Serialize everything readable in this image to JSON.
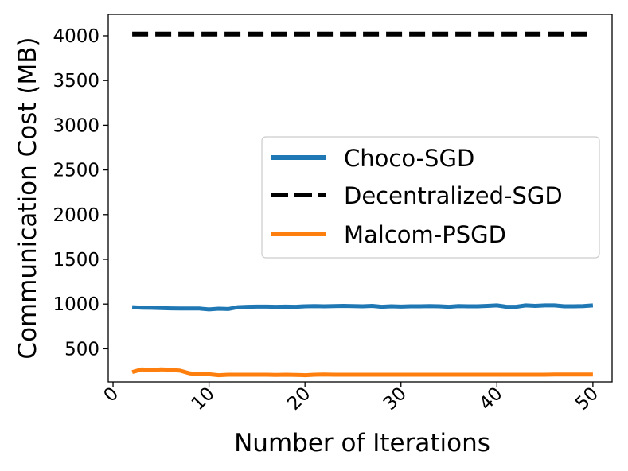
{
  "chart_data": {
    "type": "line",
    "title": "",
    "xlabel": "Number of Iterations",
    "ylabel": "Communication Cost (MB)",
    "xlim": [
      -0.5,
      52
    ],
    "ylim": [
      130,
      4240
    ],
    "xticks": [
      0,
      10,
      20,
      30,
      40,
      50
    ],
    "xtick_labels": [
      "0",
      "10",
      "20",
      "30",
      "40",
      "50"
    ],
    "yticks": [
      500,
      1000,
      1500,
      2000,
      2500,
      3000,
      3500,
      4000
    ],
    "ytick_labels": [
      "500",
      "1000",
      "1500",
      "2000",
      "2500",
      "3000",
      "3500",
      "4000"
    ],
    "grid": false,
    "legend_position": "center-right",
    "x": [
      2,
      3,
      4,
      5,
      6,
      7,
      8,
      9,
      10,
      11,
      12,
      13,
      14,
      15,
      16,
      17,
      18,
      19,
      20,
      21,
      22,
      23,
      24,
      25,
      26,
      27,
      28,
      29,
      30,
      31,
      32,
      33,
      34,
      35,
      36,
      37,
      38,
      39,
      40,
      41,
      42,
      43,
      44,
      45,
      46,
      47,
      48,
      49,
      50
    ],
    "series": [
      {
        "name": "Choco-SGD",
        "color": "#1f77b4",
        "style": "solid",
        "values": [
          965,
          960,
          958,
          955,
          952,
          950,
          950,
          950,
          940,
          948,
          945,
          965,
          970,
          972,
          972,
          970,
          972,
          970,
          975,
          978,
          975,
          977,
          980,
          978,
          975,
          980,
          970,
          975,
          972,
          975,
          975,
          978,
          975,
          970,
          978,
          975,
          975,
          980,
          985,
          970,
          970,
          985,
          980,
          985,
          985,
          975,
          975,
          978,
          985
        ]
      },
      {
        "name": "Decentralized-SGD",
        "color": "#000000",
        "style": "dashed",
        "values": [
          4020,
          4020,
          4020,
          4020,
          4020,
          4020,
          4020,
          4020,
          4020,
          4020,
          4020,
          4020,
          4020,
          4020,
          4020,
          4020,
          4020,
          4020,
          4020,
          4020,
          4020,
          4020,
          4020,
          4020,
          4020,
          4020,
          4020,
          4020,
          4020,
          4020,
          4020,
          4020,
          4020,
          4020,
          4020,
          4020,
          4020,
          4020,
          4020,
          4020,
          4020,
          4020,
          4020,
          4020,
          4020,
          4020,
          4020,
          4020,
          4020
        ]
      },
      {
        "name": "Malcom-PSGD",
        "color": "#ff7f0e",
        "style": "solid",
        "values": [
          240,
          270,
          260,
          270,
          265,
          255,
          225,
          215,
          215,
          205,
          210,
          210,
          210,
          210,
          210,
          208,
          210,
          208,
          205,
          210,
          212,
          210,
          210,
          210,
          210,
          210,
          210,
          210,
          210,
          210,
          210,
          210,
          210,
          210,
          210,
          210,
          210,
          210,
          210,
          210,
          210,
          210,
          210,
          210,
          212,
          212,
          212,
          212,
          212
        ]
      }
    ]
  }
}
